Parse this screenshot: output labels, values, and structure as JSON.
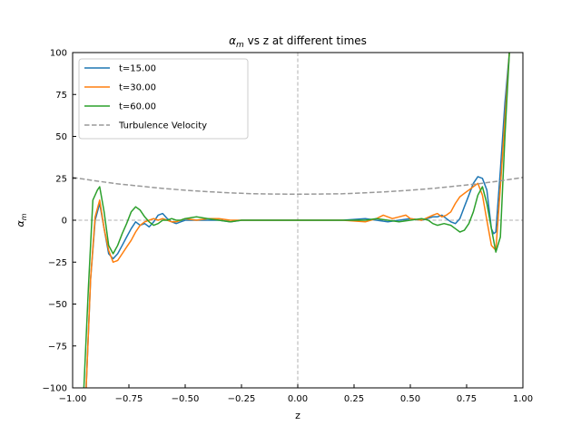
{
  "chart_data": {
    "type": "line",
    "title_prefix": "α",
    "title_sub": "m",
    "title_suffix": " vs z at different times",
    "xlabel": "z",
    "ylabel_main": "α",
    "ylabel_sub": "m",
    "xlim": [
      -1.0,
      1.0
    ],
    "ylim": [
      -100,
      100
    ],
    "xticks": [
      -1.0,
      -0.75,
      -0.5,
      -0.25,
      0.0,
      0.25,
      0.5,
      0.75,
      1.0
    ],
    "xtick_labels": [
      "−1.00",
      "−0.75",
      "−0.50",
      "−0.25",
      "0.00",
      "0.25",
      "0.50",
      "0.75",
      "1.00"
    ],
    "yticks": [
      -100,
      -75,
      -50,
      -25,
      0,
      25,
      50,
      75,
      100
    ],
    "ytick_labels": [
      "−100",
      "−75",
      "−50",
      "−25",
      "0",
      "25",
      "50",
      "75",
      "100"
    ],
    "grid": false,
    "legend_position": "top-left",
    "reference_lines": {
      "horizontal_y": 0,
      "vertical_x": 0,
      "color": "#b0b0b0"
    },
    "series": [
      {
        "name": "t=15.00",
        "color": "#1f77b4",
        "style": "solid",
        "x": [
          -0.94,
          -0.92,
          -0.9,
          -0.88,
          -0.86,
          -0.84,
          -0.82,
          -0.8,
          -0.78,
          -0.76,
          -0.74,
          -0.72,
          -0.7,
          -0.68,
          -0.66,
          -0.64,
          -0.62,
          -0.6,
          -0.58,
          -0.56,
          -0.54,
          -0.52,
          -0.5,
          -0.45,
          -0.4,
          -0.35,
          -0.3,
          -0.25,
          -0.2,
          -0.1,
          0.0,
          0.1,
          0.2,
          0.3,
          0.35,
          0.4,
          0.45,
          0.5,
          0.55,
          0.6,
          0.62,
          0.64,
          0.66,
          0.68,
          0.7,
          0.72,
          0.74,
          0.76,
          0.78,
          0.8,
          0.82,
          0.84,
          0.86,
          0.87,
          0.88,
          0.9,
          0.92,
          0.94
        ],
        "y": [
          -100,
          -35,
          0,
          10,
          -5,
          -20,
          -23,
          -20,
          -15,
          -10,
          -5,
          -1,
          -3,
          -2,
          -4,
          -1,
          3,
          4,
          1,
          -1,
          -2,
          -1,
          0,
          0,
          0,
          0,
          -1,
          0,
          0,
          0,
          0,
          0,
          0,
          1,
          0,
          -1,
          0,
          1,
          0,
          2,
          2,
          3,
          1,
          -1,
          -2,
          1,
          8,
          15,
          22,
          26,
          25,
          18,
          -5,
          -8,
          -7,
          30,
          70,
          100
        ]
      },
      {
        "name": "t=30.00",
        "color": "#ff7f0e",
        "style": "solid",
        "x": [
          -0.94,
          -0.92,
          -0.9,
          -0.88,
          -0.86,
          -0.84,
          -0.82,
          -0.8,
          -0.78,
          -0.76,
          -0.74,
          -0.72,
          -0.7,
          -0.68,
          -0.66,
          -0.64,
          -0.62,
          -0.6,
          -0.58,
          -0.56,
          -0.54,
          -0.52,
          -0.5,
          -0.45,
          -0.4,
          -0.35,
          -0.3,
          -0.25,
          -0.2,
          -0.1,
          0.0,
          0.1,
          0.2,
          0.3,
          0.35,
          0.38,
          0.4,
          0.42,
          0.45,
          0.48,
          0.5,
          0.55,
          0.6,
          0.62,
          0.64,
          0.66,
          0.68,
          0.7,
          0.72,
          0.74,
          0.76,
          0.78,
          0.8,
          0.82,
          0.84,
          0.86,
          0.88,
          0.9,
          0.92,
          0.94
        ],
        "y": [
          -100,
          -35,
          2,
          12,
          -5,
          -18,
          -25,
          -24,
          -20,
          -16,
          -12,
          -7,
          -3,
          -1,
          0,
          1,
          0,
          1,
          0,
          -1,
          -1,
          0,
          1,
          0,
          1,
          1,
          0,
          0,
          0,
          0,
          0,
          0,
          0,
          -1,
          1,
          3,
          2,
          1,
          2,
          3,
          1,
          0,
          3,
          4,
          2,
          3,
          5,
          10,
          14,
          16,
          18,
          20,
          22,
          15,
          0,
          -15,
          -18,
          20,
          60,
          100
        ]
      },
      {
        "name": "t=60.00",
        "color": "#2ca02c",
        "style": "solid",
        "x": [
          -0.95,
          -0.93,
          -0.91,
          -0.89,
          -0.88,
          -0.86,
          -0.84,
          -0.82,
          -0.8,
          -0.78,
          -0.76,
          -0.74,
          -0.72,
          -0.7,
          -0.68,
          -0.66,
          -0.64,
          -0.62,
          -0.6,
          -0.58,
          -0.56,
          -0.54,
          -0.52,
          -0.5,
          -0.45,
          -0.4,
          -0.35,
          -0.3,
          -0.25,
          -0.2,
          -0.1,
          0.0,
          0.1,
          0.2,
          0.3,
          0.35,
          0.4,
          0.45,
          0.5,
          0.55,
          0.58,
          0.6,
          0.62,
          0.65,
          0.68,
          0.7,
          0.72,
          0.74,
          0.76,
          0.78,
          0.8,
          0.82,
          0.84,
          0.86,
          0.88,
          0.9,
          0.92,
          0.94
        ],
        "y": [
          -100,
          -40,
          12,
          18,
          20,
          5,
          -15,
          -20,
          -15,
          -8,
          -2,
          5,
          8,
          6,
          2,
          -1,
          -3,
          -2,
          0,
          0,
          1,
          0,
          0,
          1,
          2,
          1,
          0,
          -1,
          0,
          0,
          0,
          0,
          0,
          0,
          0,
          1,
          0,
          -1,
          0,
          1,
          0,
          -2,
          -3,
          -2,
          -3,
          -5,
          -7,
          -6,
          -2,
          5,
          15,
          20,
          10,
          -5,
          -19,
          -10,
          50,
          100
        ]
      },
      {
        "name": "Turbulence Velocity",
        "color": "#999999",
        "style": "dashed",
        "x": [
          -1.0,
          -0.9,
          -0.8,
          -0.7,
          -0.6,
          -0.5,
          -0.4,
          -0.3,
          -0.2,
          -0.1,
          0.0,
          0.1,
          0.2,
          0.3,
          0.4,
          0.5,
          0.6,
          0.7,
          0.8,
          0.9,
          1.0
        ],
        "y": [
          25.5,
          23.5,
          21.7,
          20.3,
          19.0,
          17.9,
          17.0,
          16.3,
          15.8,
          15.6,
          15.5,
          15.6,
          15.8,
          16.3,
          17.0,
          17.9,
          19.0,
          20.3,
          21.7,
          23.5,
          25.5
        ]
      }
    ]
  }
}
